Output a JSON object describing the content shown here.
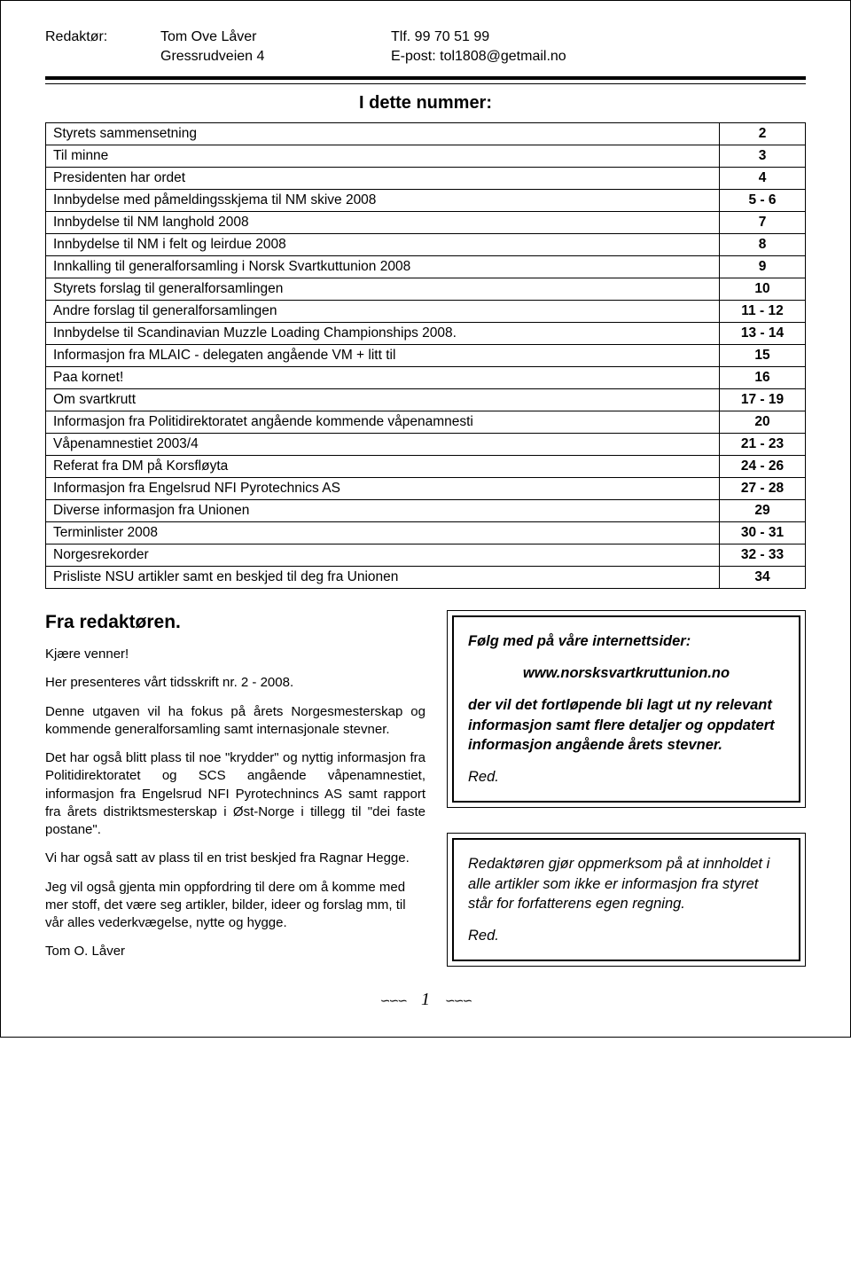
{
  "header": {
    "label": "Redaktør:",
    "name": "Tom Ove Låver",
    "address": "Gressrudveien 4",
    "phone": "Tlf. 99 70 51 99",
    "email": "E-post: tol1808@getmail.no"
  },
  "section_title": "I dette nummer:",
  "toc": [
    {
      "title": "Styrets sammensetning",
      "page": "2"
    },
    {
      "title": "Til minne",
      "page": "3"
    },
    {
      "title": "Presidenten har ordet",
      "page": "4"
    },
    {
      "title": "Innbydelse med påmeldingsskjema til NM skive 2008",
      "page": "5 - 6"
    },
    {
      "title": "Innbydelse til NM langhold 2008",
      "page": "7"
    },
    {
      "title": "Innbydelse til NM i felt og leirdue 2008",
      "page": "8"
    },
    {
      "title": "Innkalling til generalforsamling i Norsk Svartkuttunion 2008",
      "page": "9"
    },
    {
      "title": "Styrets forslag til generalforsamlingen",
      "page": "10"
    },
    {
      "title": "Andre forslag til generalforsamlingen",
      "page": "11 - 12"
    },
    {
      "title": "Innbydelse til Scandinavian Muzzle Loading Championships 2008.",
      "page": "13 - 14"
    },
    {
      "title": "Informasjon fra MLAIC - delegaten angående VM + litt til",
      "page": "15"
    },
    {
      "title": "Paa kornet!",
      "page": "16"
    },
    {
      "title": "Om svartkrutt",
      "page": "17 - 19"
    },
    {
      "title": "Informasjon fra Politidirektoratet angående kommende våpenamnesti",
      "page": "20"
    },
    {
      "title": "Våpenamnestiet 2003/4",
      "page": "21 - 23"
    },
    {
      "title": "Referat fra DM på Korsfløyta",
      "page": "24 - 26"
    },
    {
      "title": "Informasjon fra Engelsrud NFI Pyrotechnics AS",
      "page": "27 - 28"
    },
    {
      "title": "Diverse informasjon fra Unionen",
      "page": "29"
    },
    {
      "title": "Terminlister 2008",
      "page": "30 - 31"
    },
    {
      "title": "Norgesrekorder",
      "page": "32 - 33"
    },
    {
      "title": "Prisliste NSU artikler samt en beskjed til deg fra Unionen",
      "page": "34"
    }
  ],
  "editor": {
    "heading": "Fra redaktøren.",
    "p1": "Kjære venner!",
    "p2": "Her presenteres vårt tidsskrift nr. 2 - 2008.",
    "p3": "Denne utgaven vil ha fokus på årets Norgesmesterskap og kommende generalforsamling samt internasjonale stevner.",
    "p4": "Det har også blitt plass til noe \"krydder\" og nyttig informasjon fra Politidirektoratet og SCS angående våpenamnestiet, informasjon fra Engelsrud NFI Pyrotechnincs AS samt rapport fra årets distriktsmesterskap i Øst-Norge i tillegg til \"dei faste postane\".",
    "p5": "Vi har også satt av plass til en trist beskjed fra Ragnar Hegge.",
    "p6": "Jeg vil også gjenta min oppfordring til dere om å komme med mer stoff, det være seg artikler, bilder, ideer og forslag mm, til vår alles vederkvægelse, nytte og hygge.",
    "p7": "Tom O. Låver"
  },
  "box1": {
    "head": "Følg med på våre internettsider:",
    "url": "www.norsksvartkruttunion.no",
    "body": "der vil det fortløpende bli lagt ut ny relevant informasjon samt flere detaljer og oppdatert informasjon angående årets stevner.",
    "sig": "Red."
  },
  "box2": {
    "body": "Redaktøren gjør oppmerksom på at innholdet i alle artikler som ikke er informasjon fra styret står for forfatterens egen regning.",
    "sig": "Red."
  },
  "page_number": "1",
  "colors": {
    "text": "#000000",
    "bg": "#ffffff",
    "border": "#000000"
  }
}
